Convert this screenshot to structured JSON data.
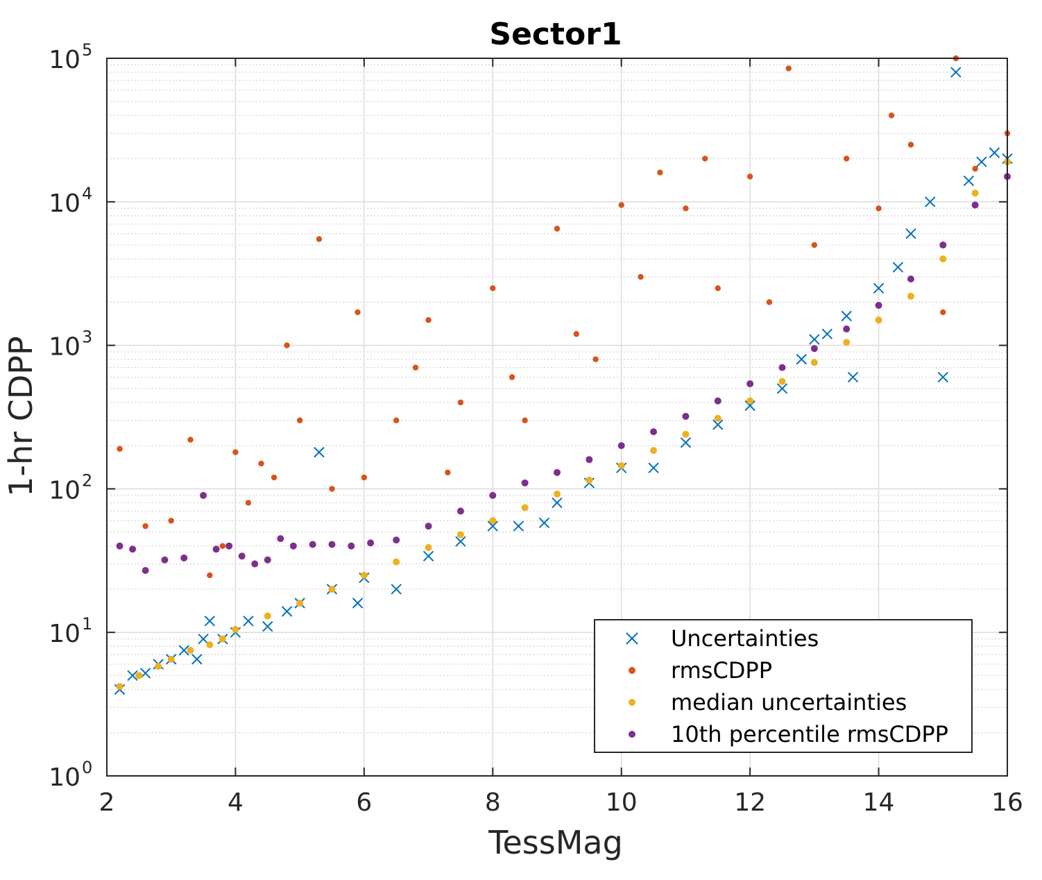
{
  "chart_data": {
    "type": "scatter",
    "title": "Sector1",
    "xlabel": "TessMag",
    "ylabel": "1-hr CDPP",
    "xlim": [
      2,
      16
    ],
    "ylim": [
      1,
      100000
    ],
    "yscale": "log",
    "grid": true,
    "legend_position": "bottom-right",
    "x_ticks": [
      "2",
      "4",
      "6",
      "8",
      "10",
      "12",
      "14",
      "16"
    ],
    "y_ticks": [
      {
        "base": "10",
        "exp": "0"
      },
      {
        "base": "10",
        "exp": "1"
      },
      {
        "base": "10",
        "exp": "2"
      },
      {
        "base": "10",
        "exp": "3"
      },
      {
        "base": "10",
        "exp": "4"
      },
      {
        "base": "10",
        "exp": "5"
      }
    ],
    "series": [
      {
        "name": "Uncertainties",
        "marker": "x",
        "color": "#0072BD",
        "x": [
          2.2,
          2.4,
          2.6,
          2.8,
          3.0,
          3.2,
          3.4,
          3.5,
          3.6,
          3.8,
          4.0,
          4.2,
          4.5,
          4.8,
          5.0,
          5.3,
          5.5,
          5.9,
          6.0,
          6.5,
          7.0,
          7.5,
          8.0,
          8.4,
          8.8,
          9.0,
          9.5,
          10.0,
          10.5,
          11.0,
          11.5,
          12.0,
          12.5,
          12.8,
          13.0,
          13.2,
          13.5,
          13.6,
          14.0,
          14.3,
          14.5,
          14.8,
          15.0,
          15.2,
          15.4,
          15.6,
          15.8,
          16.0
        ],
        "y": [
          4,
          5,
          5.2,
          6,
          6.5,
          7.5,
          6.5,
          9,
          12,
          9,
          10,
          12,
          11,
          14,
          16,
          180,
          20,
          16,
          24,
          20,
          34,
          43,
          55,
          55,
          58,
          80,
          110,
          140,
          140,
          210,
          280,
          380,
          500,
          800,
          1100,
          1200,
          1600,
          600,
          2500,
          3500,
          6000,
          10000,
          600,
          80000,
          14000,
          19000,
          22000,
          20000
        ]
      },
      {
        "name": "rmsCDPP",
        "marker": "dot",
        "color": "#D95319",
        "x": [
          2.2,
          2.6,
          3.0,
          3.3,
          3.6,
          3.8,
          4.0,
          4.2,
          4.4,
          4.6,
          4.8,
          5.0,
          5.3,
          5.5,
          5.9,
          6.0,
          6.5,
          6.8,
          7.0,
          7.3,
          7.5,
          8.0,
          8.3,
          8.5,
          9.0,
          9.3,
          9.6,
          10.0,
          10.3,
          10.6,
          11.0,
          11.3,
          11.5,
          12.0,
          12.3,
          12.6,
          13.0,
          13.5,
          14.0,
          14.2,
          14.5,
          15.0,
          15.2,
          15.5,
          16.0
        ],
        "y": [
          190,
          55,
          60,
          220,
          25,
          40,
          180,
          80,
          150,
          120,
          1000,
          300,
          5500,
          100,
          1700,
          120,
          300,
          700,
          1500,
          130,
          400,
          2500,
          600,
          300,
          6500,
          1200,
          800,
          9500,
          3000,
          16000,
          9000,
          20000,
          2500,
          15000,
          2000,
          85000,
          5000,
          20000,
          9000,
          40000,
          25000,
          1700,
          100000,
          17000,
          30000
        ]
      },
      {
        "name": "median uncertainties",
        "marker": "dot",
        "color": "#EDB120",
        "x": [
          2.2,
          2.5,
          2.8,
          3.0,
          3.3,
          3.6,
          3.8,
          4.0,
          4.5,
          5.0,
          5.5,
          6.0,
          6.5,
          7.0,
          7.5,
          8.0,
          8.5,
          9.0,
          9.5,
          10.0,
          10.5,
          11.0,
          11.5,
          12.0,
          12.5,
          13.0,
          13.5,
          14.0,
          14.5,
          15.0,
          15.5,
          16.0
        ],
        "y": [
          4.2,
          5,
          5.8,
          6.5,
          7.5,
          8.2,
          9,
          10.5,
          13,
          16,
          20,
          25,
          31,
          39,
          48,
          60,
          74,
          92,
          115,
          145,
          185,
          240,
          310,
          410,
          560,
          760,
          1050,
          1500,
          2200,
          4000,
          11500,
          19000
        ]
      },
      {
        "name": "10th percentile rmsCDPP",
        "marker": "dot",
        "color": "#7E2F8E",
        "x": [
          2.2,
          2.4,
          2.6,
          2.9,
          3.2,
          3.5,
          3.7,
          3.9,
          4.1,
          4.3,
          4.5,
          4.7,
          4.9,
          5.2,
          5.5,
          5.8,
          6.1,
          6.5,
          7.0,
          7.5,
          8.0,
          8.5,
          9.0,
          9.5,
          10.0,
          10.5,
          11.0,
          11.5,
          12.0,
          12.5,
          13.0,
          13.5,
          14.0,
          14.5,
          15.0,
          15.5,
          16.0
        ],
        "y": [
          40,
          38,
          27,
          32,
          33,
          90,
          38,
          40,
          34,
          30,
          32,
          45,
          40,
          41,
          41,
          40,
          42,
          44,
          55,
          70,
          90,
          110,
          130,
          160,
          200,
          250,
          320,
          410,
          540,
          700,
          950,
          1300,
          1900,
          2900,
          5000,
          9500,
          15000
        ]
      }
    ]
  }
}
